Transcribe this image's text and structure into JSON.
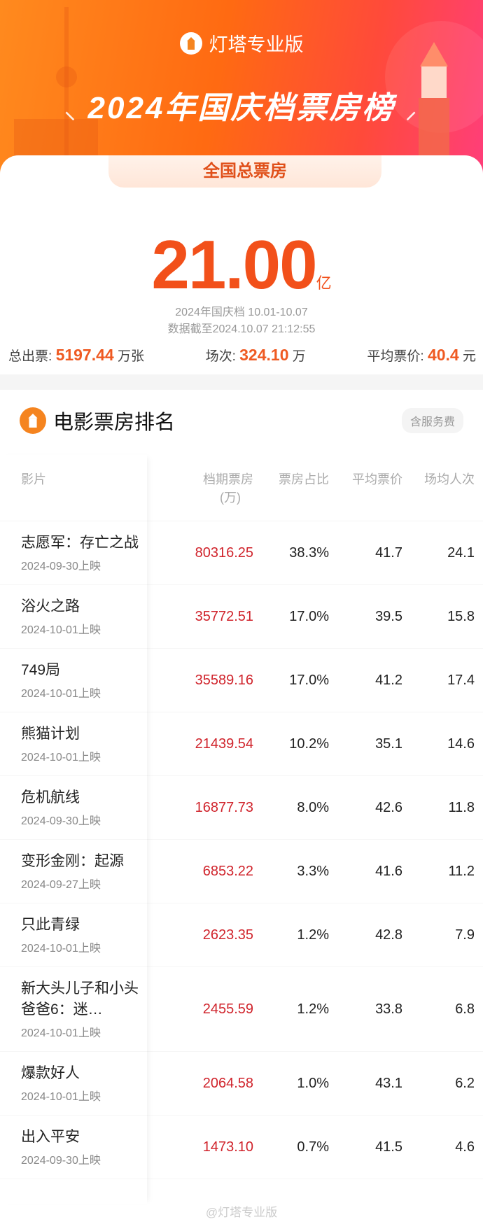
{
  "header": {
    "brand": "灯塔专业版",
    "title": "2024年国庆档票房榜",
    "tab": "全国总票房"
  },
  "summary": {
    "total_value": "21.00",
    "total_unit": "亿",
    "period": "2024年国庆档 10.01-10.07",
    "data_as_of": "数据截至2024.10.07 21:12:55",
    "tickets_label": "总出票:",
    "tickets_value": "5197.44",
    "tickets_unit": "万张",
    "shows_label": "场次:",
    "shows_value": "324.10",
    "shows_unit": "万",
    "avg_price_label": "平均票价:",
    "avg_price_value": "40.4",
    "avg_price_unit": "元"
  },
  "ranking": {
    "title": "电影票房排名",
    "badge": "含服务费",
    "columns": [
      "影片",
      "档期票房",
      "(万)",
      "票房占比",
      "平均票价",
      "场均人次"
    ],
    "rows": [
      {
        "name": "志愿军：存亡之战",
        "date": "2024-09-30上映",
        "box_office": "80316.25",
        "share": "38.3%",
        "avg_price": "41.7",
        "avg_attendance": "24.1"
      },
      {
        "name": "浴火之路",
        "date": "2024-10-01上映",
        "box_office": "35772.51",
        "share": "17.0%",
        "avg_price": "39.5",
        "avg_attendance": "15.8"
      },
      {
        "name": "749局",
        "date": "2024-10-01上映",
        "box_office": "35589.16",
        "share": "17.0%",
        "avg_price": "41.2",
        "avg_attendance": "17.4"
      },
      {
        "name": "熊猫计划",
        "date": "2024-10-01上映",
        "box_office": "21439.54",
        "share": "10.2%",
        "avg_price": "35.1",
        "avg_attendance": "14.6"
      },
      {
        "name": "危机航线",
        "date": "2024-09-30上映",
        "box_office": "16877.73",
        "share": "8.0%",
        "avg_price": "42.6",
        "avg_attendance": "11.8"
      },
      {
        "name": "变形金刚：起源",
        "date": "2024-09-27上映",
        "box_office": "6853.22",
        "share": "3.3%",
        "avg_price": "41.6",
        "avg_attendance": "11.2"
      },
      {
        "name": "只此青绿",
        "date": "2024-10-01上映",
        "box_office": "2623.35",
        "share": "1.2%",
        "avg_price": "42.8",
        "avg_attendance": "7.9"
      },
      {
        "name": "新大头儿子和小头爸爸6：迷…",
        "date": "2024-10-01上映",
        "box_office": "2455.59",
        "share": "1.2%",
        "avg_price": "33.8",
        "avg_attendance": "6.8"
      },
      {
        "name": "爆款好人",
        "date": "2024-10-01上映",
        "box_office": "2064.58",
        "share": "1.0%",
        "avg_price": "43.1",
        "avg_attendance": "6.2"
      },
      {
        "name": "出入平安",
        "date": "2024-09-30上映",
        "box_office": "1473.10",
        "share": "0.7%",
        "avg_price": "41.5",
        "avg_attendance": "4.6"
      }
    ]
  },
  "watermark": "@灯塔专业版",
  "colors": {
    "accent": "#f2501a",
    "box_office": "#d0242c",
    "gradient_start": "#ff8a1e",
    "gradient_end": "#ff3e7a"
  }
}
